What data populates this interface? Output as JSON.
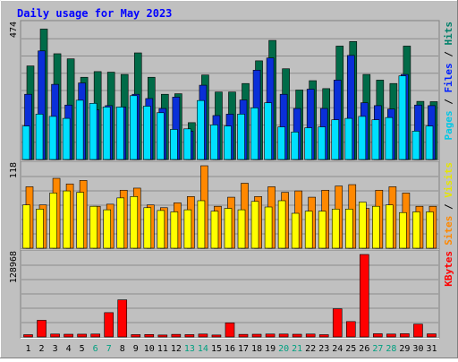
{
  "chart_data": {
    "type": "bar",
    "title": "Daily usage for May 2023",
    "categories": [
      "1",
      "2",
      "3",
      "4",
      "5",
      "6",
      "7",
      "8",
      "9",
      "10",
      "11",
      "12",
      "13",
      "14",
      "15",
      "16",
      "17",
      "18",
      "19",
      "20",
      "21",
      "22",
      "23",
      "24",
      "25",
      "26",
      "27",
      "28",
      "29",
      "30",
      "31"
    ],
    "weekend_days": [
      "6",
      "7",
      "13",
      "14",
      "20",
      "21",
      "27",
      "28"
    ],
    "panels": [
      {
        "id": "hits_files_pages",
        "max_label": "474",
        "ylim": [
          0,
          474
        ],
        "legend": [
          "Pages",
          "Files",
          "Hits"
        ],
        "series": [
          {
            "name": "Hits",
            "color": "#006b48",
            "values": [
              330,
              460,
              373,
              355,
              290,
              310,
              308,
              300,
              376,
              290,
              230,
              232,
              130,
              298,
              238,
              238,
              268,
              348,
              420,
              320,
              245,
              278,
              250,
              400,
              416,
              300,
              280,
              268,
              400,
              205,
              204
            ]
          },
          {
            "name": "Files",
            "color": "#0a2fd8",
            "values": [
              230,
              383,
              265,
              192,
              270,
              175,
              190,
              185,
              230,
              215,
              180,
              220,
              100,
              262,
              155,
              160,
              210,
              315,
              358,
              230,
              180,
              248,
              180,
              280,
              367,
              200,
              190,
              178,
              300,
              192,
              190
            ]
          },
          {
            "name": "Pages",
            "color": "#00e0ff",
            "values": [
              118,
              160,
              152,
              145,
              209,
              198,
              185,
              185,
              225,
              188,
              165,
              106,
              108,
              208,
              122,
              118,
              160,
              182,
              200,
              115,
              97,
              112,
              115,
              140,
              145,
              152,
              140,
              148,
              295,
              100,
              118
            ]
          }
        ]
      },
      {
        "id": "visits_sites",
        "max_label": "118",
        "ylim": [
          0,
          118
        ],
        "legend": [
          "Sites",
          "Visits"
        ],
        "series": [
          {
            "name": "Visits",
            "color": "#ff8800",
            "values": [
              88,
              62,
              100,
              92,
              97,
              60,
              63,
              83,
              86,
              62,
              58,
              65,
              74,
              118,
              60,
              73,
              93,
              74,
              88,
              80,
              82,
              73,
              83,
              89,
              91,
              57,
              83,
              88,
              79,
              60,
              60
            ]
          },
          {
            "name": "Sites",
            "color": "#ffff00",
            "values": [
              62,
              56,
              79,
              82,
              80,
              60,
              55,
              72,
              74,
              58,
              54,
              52,
              55,
              68,
              53,
              57,
              55,
              67,
              59,
              68,
              50,
              53,
              53,
              56,
              56,
              66,
              60,
              62,
              51,
              52,
              52
            ]
          }
        ]
      },
      {
        "id": "kbytes",
        "max_label": "128968",
        "ylim": [
          0,
          128968
        ],
        "legend": [
          "KBytes"
        ],
        "series": [
          {
            "name": "KBytes",
            "color": "#ff0000",
            "values": [
              3500,
              26000,
              4500,
              4200,
              4300,
              4500,
              38000,
              58000,
              3600,
              3800,
              3000,
              4000,
              3600,
              4500,
              3000,
              22000,
              4000,
              4200,
              4500,
              4500,
              4200,
              4500,
              3500,
              44000,
              24000,
              128968,
              5000,
              4500,
              5000,
              20000,
              4800
            ]
          }
        ]
      }
    ]
  },
  "colors": {
    "background": "#c0c0c0",
    "title": "#0000ff",
    "weekday_label": "#000080",
    "weekend_label": "#00a080",
    "grid": "#8c8c8c"
  }
}
